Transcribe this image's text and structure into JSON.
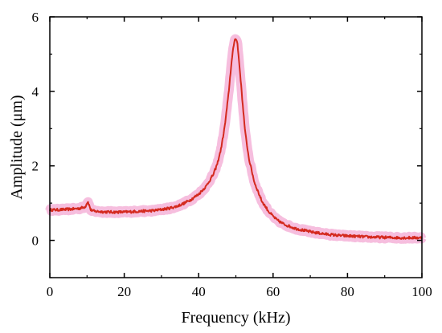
{
  "chart_data": {
    "type": "line",
    "xlabel": "Frequency (kHz)",
    "ylabel": "Amplitude (μm)",
    "xlim": [
      0,
      100
    ],
    "ylim": [
      -1,
      6
    ],
    "xticks": [
      0,
      20,
      40,
      60,
      80,
      100
    ],
    "yticks": [
      0,
      2,
      4,
      6
    ],
    "grid": false,
    "legend": "none",
    "series": [
      {
        "color": "#d42a1f",
        "band_color": "#f5b3d8",
        "points": [
          [
            0,
            0.82
          ],
          [
            2,
            0.82
          ],
          [
            4,
            0.83
          ],
          [
            6,
            0.84
          ],
          [
            8,
            0.86
          ],
          [
            9.5,
            0.9
          ],
          [
            10.2,
            1.05
          ],
          [
            11,
            0.82
          ],
          [
            12,
            0.78
          ],
          [
            14,
            0.77
          ],
          [
            16,
            0.76
          ],
          [
            18,
            0.76
          ],
          [
            20,
            0.76
          ],
          [
            22,
            0.77
          ],
          [
            24,
            0.78
          ],
          [
            26,
            0.79
          ],
          [
            28,
            0.8
          ],
          [
            30,
            0.83
          ],
          [
            32,
            0.86
          ],
          [
            34,
            0.91
          ],
          [
            36,
            0.99
          ],
          [
            38,
            1.1
          ],
          [
            40,
            1.24
          ],
          [
            42,
            1.45
          ],
          [
            44,
            1.78
          ],
          [
            45,
            2.05
          ],
          [
            46,
            2.45
          ],
          [
            47,
            3.05
          ],
          [
            48,
            3.9
          ],
          [
            48.8,
            4.75
          ],
          [
            49.5,
            5.3
          ],
          [
            49.9,
            5.45
          ],
          [
            50.4,
            5.3
          ],
          [
            51,
            4.65
          ],
          [
            51.8,
            3.7
          ],
          [
            52.5,
            2.9
          ],
          [
            53.5,
            2.2
          ],
          [
            55,
            1.55
          ],
          [
            57,
            1.05
          ],
          [
            59,
            0.75
          ],
          [
            61,
            0.55
          ],
          [
            63,
            0.43
          ],
          [
            66,
            0.32
          ],
          [
            70,
            0.23
          ],
          [
            74,
            0.17
          ],
          [
            78,
            0.13
          ],
          [
            82,
            0.11
          ],
          [
            86,
            0.09
          ],
          [
            90,
            0.08
          ],
          [
            94,
            0.07
          ],
          [
            97,
            0.07
          ],
          [
            100,
            0.07
          ]
        ]
      }
    ]
  }
}
